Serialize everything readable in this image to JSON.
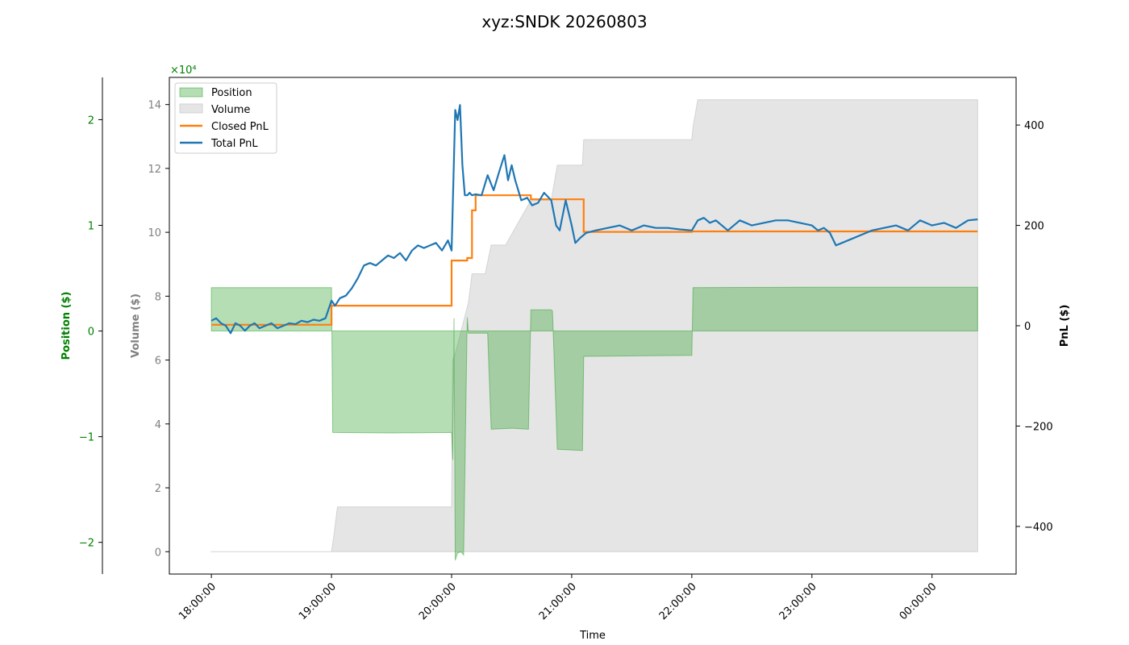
{
  "chart_data": {
    "type": "line",
    "title": "xyz:SNDK 20260803",
    "xlabel": "Time",
    "x_ticks": [
      "18:00:00",
      "19:00:00",
      "20:00:00",
      "21:00:00",
      "22:00:00",
      "23:00:00",
      "00:00:00"
    ],
    "xlim_hours": [
      17.65,
      24.7
    ],
    "axes": {
      "position": {
        "label": "Position ($)",
        "color": "#008000",
        "scale_note": "×10⁴",
        "ylim": [
          -23000,
          24000
        ],
        "ticks": [
          -20000,
          -10000,
          0,
          10000,
          20000
        ],
        "tick_labels": [
          "−2",
          "−1",
          "0",
          "1",
          "2"
        ]
      },
      "volume": {
        "label": "Volume ($)",
        "color": "#808080",
        "ylim": [
          -7000,
          148500
        ],
        "ticks": [
          0,
          20000,
          40000,
          60000,
          80000,
          100000,
          120000,
          140000
        ],
        "tick_labels": [
          "0",
          "2",
          "4",
          "6",
          "8",
          "10",
          "12",
          "14"
        ]
      },
      "pnl": {
        "label": "PnL ($)",
        "color": "#000000",
        "ylim": [
          -495,
          495
        ],
        "ticks": [
          -400,
          -200,
          0,
          200,
          400
        ],
        "tick_labels": [
          "−400",
          "−200",
          "0",
          "200",
          "400"
        ]
      }
    },
    "legend": {
      "placement": "upper-left",
      "entries": [
        "Position",
        "Volume",
        "Closed PnL",
        "Total PnL"
      ]
    },
    "colors": {
      "position_fill": "#2ca02c",
      "position_edge": "#2ca02c",
      "volume_fill": "#d3d3d3",
      "closed_pnl": "#ff7f0e",
      "total_pnl": "#1f77b4"
    },
    "series": [
      {
        "name": "Volume",
        "axis": "volume",
        "style": "area",
        "x": [
          18.0,
          19.0,
          19.02,
          19.05,
          20.0,
          20.01,
          20.03,
          20.14,
          20.17,
          20.28,
          20.33,
          20.45,
          20.66,
          20.83,
          20.88,
          21.09,
          21.1,
          22.0,
          22.01,
          22.05,
          24.38
        ],
        "y": [
          0,
          0,
          5000,
          14000,
          14000,
          60000,
          62000,
          78000,
          87000,
          87000,
          96000,
          96000,
          110000,
          110000,
          121000,
          121000,
          129000,
          129000,
          133000,
          141500,
          141500
        ]
      },
      {
        "name": "Position",
        "axis": "position",
        "style": "area",
        "x": [
          18.0,
          19.0,
          19.01,
          19.5,
          20.0,
          20.01,
          20.02,
          20.03,
          20.05,
          20.08,
          20.1,
          20.13,
          20.14,
          20.2,
          20.3,
          20.33,
          20.5,
          20.64,
          20.66,
          20.83,
          20.84,
          20.88,
          21.09,
          21.1,
          22.0,
          22.01,
          23.0,
          24.38
        ],
        "y": [
          4100,
          4100,
          -9600,
          -9650,
          -9600,
          -12200,
          1200,
          -21700,
          -21000,
          -20900,
          -21200,
          1300,
          -200,
          -200,
          -200,
          -9300,
          -9200,
          -9300,
          2000,
          2000,
          1900,
          -11200,
          -11300,
          -2400,
          -2300,
          4100,
          4150,
          4150
        ]
      },
      {
        "name": "Closed PnL",
        "axis": "pnl",
        "style": "step",
        "x": [
          18.0,
          19.0,
          20.0,
          20.13,
          20.17,
          20.2,
          20.66,
          21.1,
          22.0,
          24.38
        ],
        "y": [
          2,
          40,
          130,
          135,
          230,
          260,
          252,
          187,
          188,
          188
        ]
      },
      {
        "name": "Total PnL",
        "axis": "pnl",
        "style": "line",
        "x": [
          18.0,
          18.04,
          18.08,
          18.12,
          18.16,
          18.2,
          18.24,
          18.28,
          18.32,
          18.36,
          18.4,
          18.45,
          18.5,
          18.55,
          18.6,
          18.65,
          18.7,
          18.75,
          18.8,
          18.85,
          18.9,
          18.95,
          19.0,
          19.03,
          19.07,
          19.12,
          19.17,
          19.22,
          19.27,
          19.32,
          19.37,
          19.42,
          19.47,
          19.52,
          19.57,
          19.62,
          19.67,
          19.72,
          19.77,
          19.82,
          19.87,
          19.92,
          19.97,
          20.0,
          20.03,
          20.05,
          20.07,
          20.09,
          20.11,
          20.13,
          20.15,
          20.17,
          20.2,
          20.25,
          20.3,
          20.35,
          20.4,
          20.44,
          20.47,
          20.5,
          20.53,
          20.58,
          20.63,
          20.67,
          20.72,
          20.77,
          20.83,
          20.87,
          20.9,
          20.95,
          21.0,
          21.03,
          21.07,
          21.12,
          21.2,
          21.3,
          21.4,
          21.5,
          21.6,
          21.7,
          21.8,
          21.9,
          22.0,
          22.05,
          22.1,
          22.15,
          22.2,
          22.3,
          22.4,
          22.5,
          22.6,
          22.7,
          22.8,
          22.9,
          23.0,
          23.05,
          23.1,
          23.15,
          23.2,
          23.3,
          23.4,
          23.5,
          23.6,
          23.7,
          23.8,
          23.9,
          24.0,
          24.1,
          24.2,
          24.3,
          24.38
        ],
        "y": [
          10,
          15,
          5,
          0,
          -15,
          5,
          0,
          -10,
          0,
          5,
          -5,
          0,
          5,
          -5,
          0,
          5,
          3,
          10,
          7,
          12,
          10,
          15,
          50,
          40,
          55,
          60,
          75,
          95,
          120,
          125,
          120,
          130,
          140,
          135,
          145,
          130,
          150,
          160,
          155,
          160,
          165,
          150,
          170,
          150,
          430,
          410,
          440,
          320,
          260,
          260,
          265,
          260,
          262,
          260,
          300,
          270,
          310,
          340,
          290,
          320,
          290,
          250,
          255,
          240,
          245,
          265,
          250,
          200,
          190,
          250,
          200,
          165,
          175,
          185,
          190,
          195,
          200,
          190,
          200,
          195,
          195,
          192,
          190,
          210,
          215,
          205,
          210,
          190,
          210,
          200,
          205,
          210,
          210,
          205,
          200,
          190,
          195,
          185,
          160,
          170,
          180,
          190,
          195,
          200,
          190,
          210,
          200,
          205,
          195,
          210,
          212
        ]
      }
    ]
  }
}
